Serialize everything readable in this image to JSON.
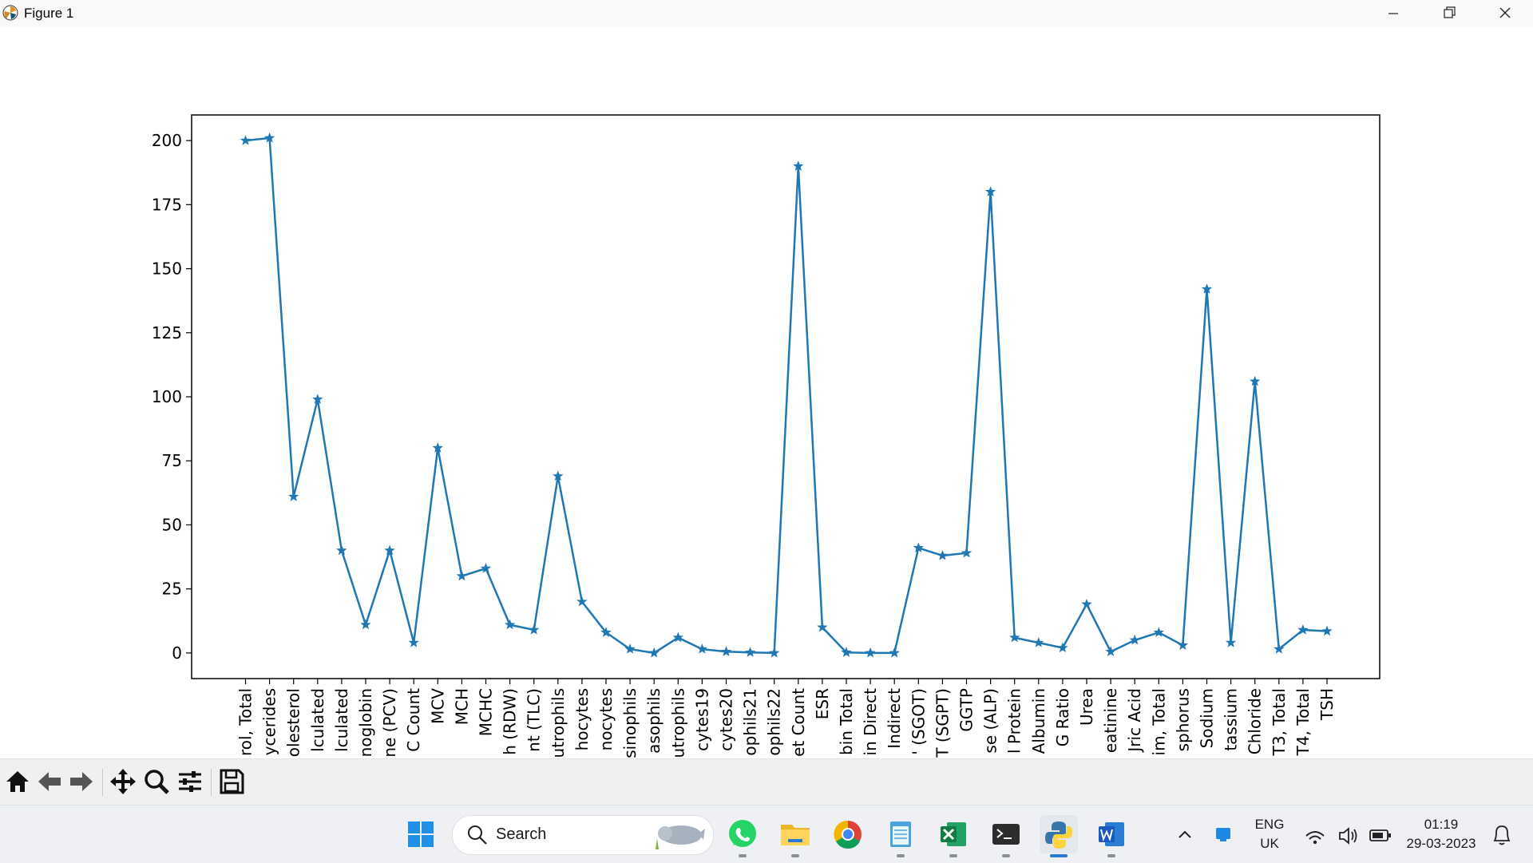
{
  "window": {
    "title": "Figure 1"
  },
  "chart_data": {
    "type": "line",
    "marker": "star",
    "color": "#1f77b4",
    "ylim": [
      -10,
      210
    ],
    "yticks": [
      0,
      25,
      50,
      75,
      100,
      125,
      150,
      175,
      200
    ],
    "x_tick_labels": [
      "rol, Total",
      "ycerides",
      "olesterol",
      "lculated",
      "lculated",
      "noglobin",
      "ne (PCV)",
      "C Count",
      "MCV",
      "MCH",
      "MCHC",
      "h (RDW)",
      "nt (TLC)",
      "utrophils",
      "hocytes",
      "nocytes",
      "sinophils",
      "asophils",
      "utrophils",
      "cytes19",
      "cytes20",
      "ophils21",
      "ophils22",
      "et Count",
      "ESR",
      "bin Total",
      "in Direct",
      "Indirect",
      "' (SGOT)",
      "T (SGPT)",
      "GGTP",
      "se (ALP)",
      "l Protein",
      "Albumin",
      "G Ratio",
      "Urea",
      "eatinine",
      "Jric Acid",
      "im, Total",
      "sphorus",
      "Sodium",
      "tassium",
      "Chloride",
      "T3, Total",
      "T4, Total",
      "TSH"
    ],
    "values": [
      200,
      201,
      61,
      99,
      40,
      11,
      40,
      4,
      80,
      30,
      33,
      11,
      9,
      69,
      20,
      8,
      1.5,
      0,
      6,
      1.5,
      0.5,
      0.2,
      0,
      190,
      10,
      0.2,
      0,
      0,
      41,
      38,
      39,
      180,
      6,
      4,
      2,
      19,
      0.5,
      5,
      8,
      3,
      142,
      4,
      106,
      1.5,
      9,
      8.5
    ]
  },
  "toolbar": {
    "items": [
      {
        "name": "home-icon"
      },
      {
        "name": "back-arrow-icon"
      },
      {
        "name": "forward-arrow-icon"
      },
      {
        "name": "pan-icon"
      },
      {
        "name": "zoom-icon"
      },
      {
        "name": "configure-subplots-icon"
      },
      {
        "name": "save-icon"
      }
    ]
  },
  "taskbar": {
    "search_label": "Search",
    "language": "ENG",
    "region": "UK",
    "time": "01:19",
    "date": "29-03-2023"
  }
}
